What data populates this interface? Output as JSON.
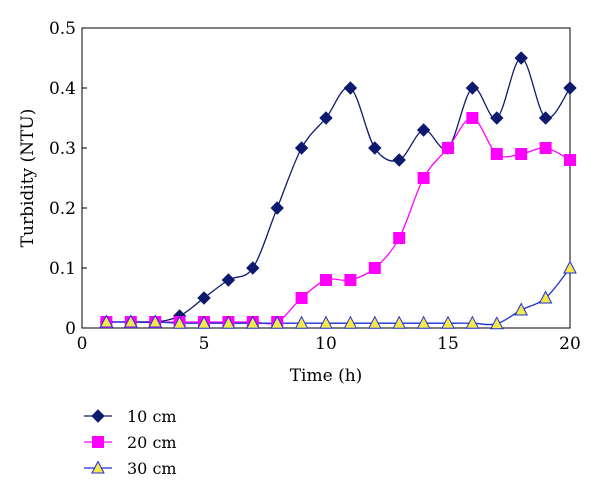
{
  "chart_data": {
    "type": "line",
    "xlabel": "Time (h)",
    "ylabel": "Turbidity (NTU)",
    "xlim": [
      0,
      20
    ],
    "ylim": [
      0,
      0.5
    ],
    "xticks": [
      0,
      5,
      10,
      15,
      20
    ],
    "yticks": [
      0,
      0.1,
      0.2,
      0.3,
      0.4,
      0.5
    ],
    "xtick_labels": [
      "0",
      "5",
      "10",
      "15",
      "20"
    ],
    "ytick_labels": [
      "0",
      "0.1",
      "0.2",
      "0.3",
      "0.4",
      "0.5"
    ],
    "grid": false,
    "legend_position": "bottom-left, below plot",
    "x": [
      1,
      2,
      3,
      4,
      5,
      6,
      7,
      8,
      9,
      10,
      11,
      12,
      13,
      14,
      15,
      16,
      17,
      18,
      19,
      20
    ],
    "series": [
      {
        "name": "10 cm",
        "color": "#0d1a6e",
        "marker": "diamond",
        "values": [
          0.01,
          0.01,
          0.01,
          0.02,
          0.05,
          0.08,
          0.1,
          0.2,
          0.3,
          0.35,
          0.4,
          0.3,
          0.28,
          0.33,
          0.3,
          0.4,
          0.35,
          0.45,
          0.35,
          0.4
        ]
      },
      {
        "name": "20 cm",
        "color": "#ff00ff",
        "marker": "square",
        "values": [
          0.01,
          0.01,
          0.01,
          0.01,
          0.01,
          0.01,
          0.01,
          0.01,
          0.05,
          0.08,
          0.08,
          0.1,
          0.15,
          0.25,
          0.3,
          0.35,
          0.29,
          0.29,
          0.3,
          0.28
        ]
      },
      {
        "name": "30 cm",
        "color": "#1c2fd6",
        "marker": "triangle",
        "marker_fill": "#f5e84a",
        "values": [
          0.01,
          0.01,
          0.01,
          0.008,
          0.008,
          0.008,
          0.008,
          0.008,
          0.008,
          0.008,
          0.008,
          0.008,
          0.008,
          0.008,
          0.008,
          0.008,
          0.007,
          0.03,
          0.05,
          0.1
        ]
      }
    ]
  }
}
